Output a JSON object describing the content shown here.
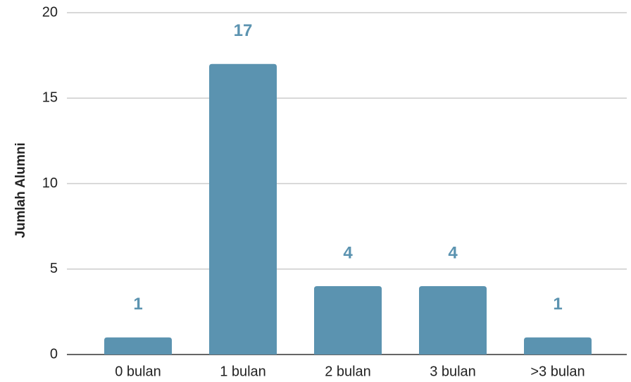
{
  "chart_data": {
    "type": "bar",
    "y_label": "Jumlah Alumni",
    "categories": [
      "0 bulan",
      "1 bulan",
      "2 bulan",
      "3 bulan",
      ">3 bulan"
    ],
    "values": [
      1,
      17,
      4,
      4,
      1
    ],
    "color": "#5b93b0",
    "ylim": [
      0,
      20
    ],
    "yticks": [
      0,
      5,
      10,
      15,
      20
    ],
    "grid": true
  }
}
